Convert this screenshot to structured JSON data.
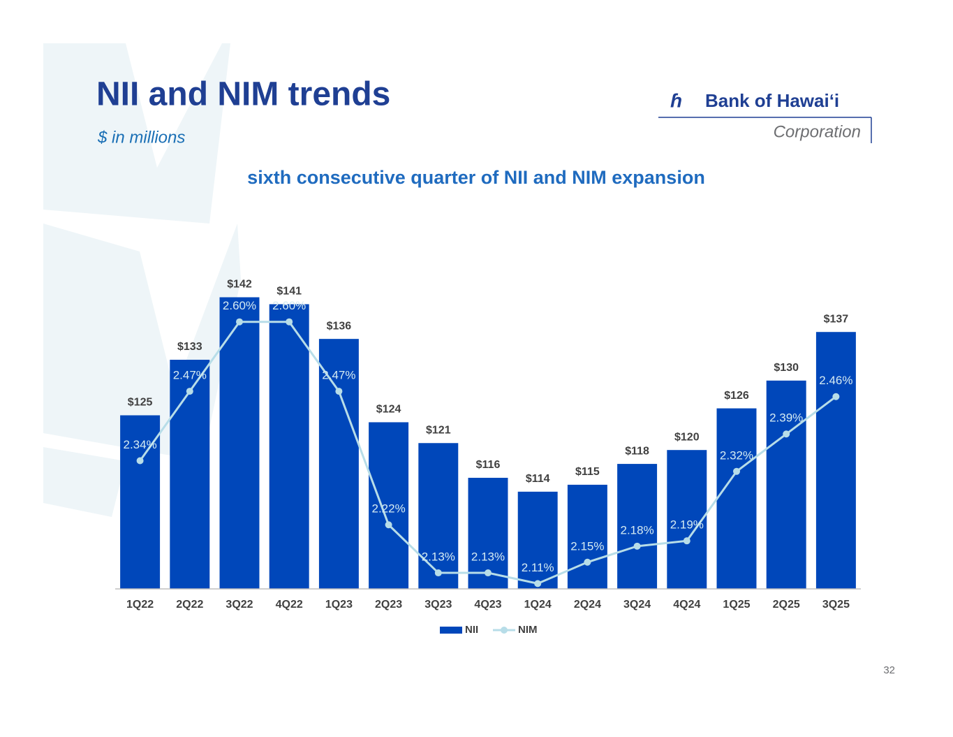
{
  "chart_data": {
    "type": "bar-line",
    "title": "NII and NIM trends",
    "subtitle": "$ in millions",
    "annotation": "sixth consecutive quarter of NII and NIM expansion",
    "categories": [
      "1Q22",
      "2Q22",
      "3Q22",
      "4Q22",
      "1Q23",
      "2Q23",
      "3Q23",
      "4Q23",
      "1Q24",
      "2Q24",
      "3Q24",
      "4Q24",
      "1Q25",
      "2Q25",
      "3Q25"
    ],
    "series": [
      {
        "name": "NII",
        "type": "bar",
        "color": "#0047ba",
        "values": [
          125,
          133,
          142,
          141,
          136,
          124,
          121,
          116,
          114,
          115,
          118,
          120,
          126,
          130,
          137
        ],
        "value_labels": [
          "$125",
          "$133",
          "$142",
          "$141",
          "$136",
          "$124",
          "$121",
          "$116",
          "$114",
          "$115",
          "$118",
          "$120",
          "$126",
          "$130",
          "$137"
        ]
      },
      {
        "name": "NIM",
        "type": "line",
        "axis": "y2",
        "color": "#b7dde8",
        "values": [
          2.34,
          2.47,
          2.6,
          2.6,
          2.47,
          2.22,
          2.13,
          2.13,
          2.11,
          2.15,
          2.18,
          2.19,
          2.32,
          2.39,
          2.46
        ],
        "value_labels": [
          "2.34%",
          "2.47%",
          "2.60%",
          "2.60%",
          "2.47%",
          "2.22%",
          "2.13%",
          "2.13%",
          "2.11%",
          "2.15%",
          "2.18%",
          "2.19%",
          "2.32%",
          "2.39%",
          "2.46%"
        ]
      }
    ],
    "ylim": [
      100,
      150
    ],
    "y2lim": [
      2.1,
      2.75
    ],
    "legend": "bottom"
  },
  "logo": {
    "name": "Bank of Hawaiʻi",
    "subtitle": "Corporation"
  },
  "page_number": "32"
}
